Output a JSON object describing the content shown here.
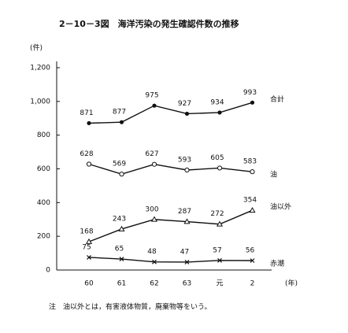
{
  "chart_data": {
    "type": "line",
    "title": "2－10－3図　海洋汚染の発生確認件数の推移",
    "y_label": "(件)",
    "x_label": "(年)",
    "note": "注　油以外とは，有害液体物質，廃棄物等をいう。",
    "categories": [
      "60",
      "61",
      "62",
      "63",
      "元",
      "2"
    ],
    "series": [
      {
        "name": "合計",
        "color": "#111111",
        "marker": "filled-circle",
        "values": [
          871,
          877,
          975,
          927,
          934,
          993
        ]
      },
      {
        "name": "油",
        "color": "#111111",
        "marker": "open-circle",
        "values": [
          628,
          569,
          627,
          593,
          605,
          583
        ]
      },
      {
        "name": "油以外",
        "color": "#111111",
        "marker": "open-triangle",
        "values": [
          168,
          243,
          300,
          287,
          272,
          354
        ]
      },
      {
        "name": "赤潮",
        "color": "#111111",
        "marker": "cross",
        "values": [
          75,
          65,
          48,
          47,
          57,
          56
        ]
      }
    ],
    "ylim": [
      0,
      1200
    ],
    "yticks": [
      0,
      200,
      400,
      600,
      800,
      {
        "value": 1000,
        "label": "1,000"
      },
      {
        "value": 1200,
        "label": "1,200"
      }
    ],
    "grid": false
  }
}
